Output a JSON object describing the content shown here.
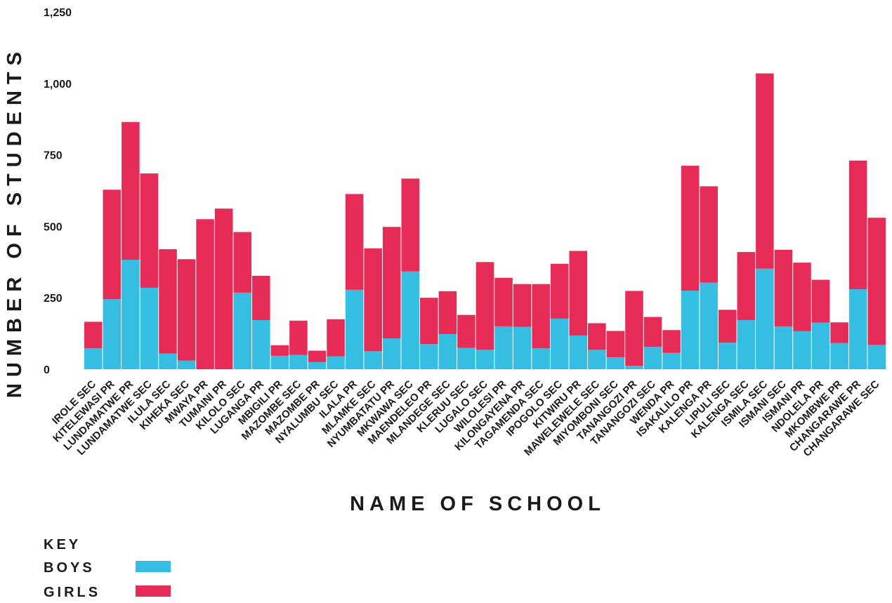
{
  "chart_data": {
    "type": "bar",
    "stacked": true,
    "xlabel": "NAME OF SCHOOL",
    "ylabel": "NUMBER OF STUDENTS",
    "ylim": [
      0,
      1250
    ],
    "yticks": [
      0,
      250,
      500,
      750,
      1000,
      1250
    ],
    "ytick_labels": [
      "0",
      "250",
      "500",
      "750",
      "1,000",
      "1,250"
    ],
    "grid": false,
    "categories": [
      "IROLE SEC",
      "KITELEWASI PR",
      "LUNDAMATWE PR",
      "LUNDAMATWE SEC",
      "ILULA SEC",
      "KIHEKA SEC",
      "MWAYA PR",
      "TUMAINI PR",
      "KILOLO SEC",
      "LUGANGA PR",
      "MBIGILI PR",
      "MAZOMBE SEC",
      "MAZOMBE PR",
      "NYALUMBU SEC",
      "ILALA PR",
      "MLAMKE SEC",
      "NYUMBATATU PR",
      "MKWAWA SEC",
      "MAENDELEO PR",
      "MLANDEGE SEC",
      "KLERUU SEC",
      "LUGALO SEC",
      "WILOLESI PR",
      "KILONGAYENA PR",
      "TAGAMENDA SEC",
      "IPOGOLO SEC",
      "KITWIRU PR",
      "MAWELEWELE SEC",
      "MIYOMBONI SEC",
      "TANANGOZI PR",
      "TANANGOZI SEC",
      "WENDA PR",
      "ISAKALILO PR",
      "KALENGA PR",
      "LIPULI SEC",
      "KALENGA SEC",
      "ISMILA SEC",
      "ISMANI SEC",
      "ISMANI PR",
      "NDOLELA PR",
      "MKOMBWE PR",
      "CHANGARAWE PR",
      "CHANGARAWE SEC"
    ],
    "series": [
      {
        "name": "BOYS",
        "color": "#35bde2",
        "values": [
          73,
          245,
          383,
          285,
          55,
          30,
          0,
          0,
          268,
          172,
          47,
          50,
          25,
          45,
          278,
          63,
          108,
          342,
          88,
          123,
          75,
          68,
          150,
          148,
          73,
          177,
          118,
          68,
          42,
          12,
          78,
          57,
          275,
          303,
          93,
          172,
          352,
          150,
          133,
          163,
          92,
          280,
          85
        ]
      },
      {
        "name": "GIRLS",
        "color": "#e62b57",
        "values": [
          93,
          383,
          482,
          400,
          365,
          355,
          525,
          562,
          212,
          155,
          37,
          120,
          40,
          130,
          335,
          360,
          390,
          325,
          162,
          150,
          115,
          307,
          170,
          150,
          225,
          192,
          296,
          93,
          92,
          262,
          105,
          80,
          437,
          337,
          115,
          238,
          683,
          268,
          240,
          150,
          72,
          450,
          445
        ]
      }
    ],
    "legend": {
      "title": "KEY",
      "position": "bottom-left",
      "entries": [
        "BOYS",
        "GIRLS"
      ]
    }
  }
}
